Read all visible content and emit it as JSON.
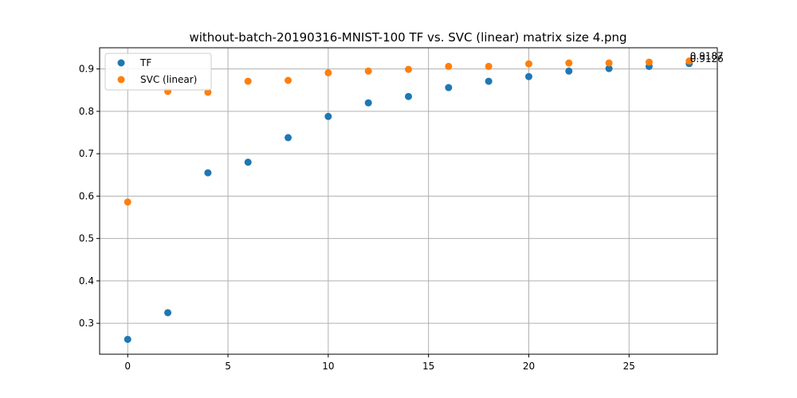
{
  "chart_data": {
    "type": "scatter",
    "title": "without-batch-20190316-MNIST-100 TF vs. SVC (linear) matrix size 4.png",
    "xlabel": "",
    "ylabel": "",
    "xlim": [
      -1.4,
      29.4
    ],
    "ylim": [
      0.227,
      0.95
    ],
    "xticks": [
      0,
      5,
      10,
      15,
      20,
      25
    ],
    "yticks": [
      0.3,
      0.4,
      0.5,
      0.6,
      0.7,
      0.8,
      0.9
    ],
    "grid": true,
    "legend": "top-left",
    "x": [
      0,
      2,
      4,
      6,
      8,
      10,
      12,
      14,
      16,
      18,
      20,
      22,
      24,
      26,
      28
    ],
    "series": [
      {
        "name": "TF",
        "color": "#1f77b4",
        "values": [
          0.262,
          0.325,
          0.655,
          0.68,
          0.738,
          0.788,
          0.82,
          0.835,
          0.856,
          0.871,
          0.882,
          0.895,
          0.901,
          0.906,
          0.9126
        ]
      },
      {
        "name": "SVC (linear)",
        "color": "#ff7f0e",
        "values": [
          0.586,
          0.847,
          0.845,
          0.871,
          0.873,
          0.891,
          0.895,
          0.899,
          0.906,
          0.906,
          0.912,
          0.914,
          0.914,
          0.916,
          0.9187
        ]
      }
    ],
    "annotations": [
      {
        "text": "0.9187",
        "x": 28,
        "y": 0.9187
      },
      {
        "text": "0.9126",
        "x": 28,
        "y": 0.9126
      }
    ]
  }
}
